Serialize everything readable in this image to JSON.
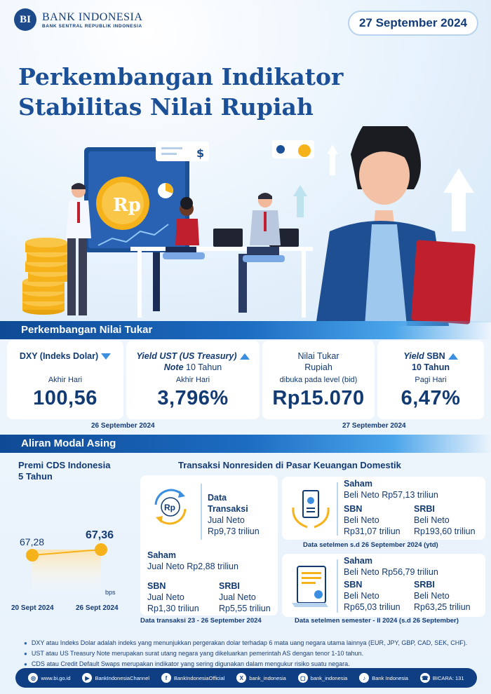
{
  "header": {
    "brand": "BANK INDONESIA",
    "brand_sub": "BANK SENTRAL REPUBLIK INDONESIA",
    "logo_letters": "BI",
    "date": "27 September 2024"
  },
  "title": {
    "line1": "Perkembangan Indikator",
    "line2": "Stabilitas Nilai Rupiah"
  },
  "illustration": {
    "coin_label": "Rp",
    "screen_icon": "$"
  },
  "exchange": {
    "heading": "Perkembangan Nilai Tukar",
    "cards": [
      {
        "label": "DXY (Indeks Dolar)",
        "sub": "Akhir Hari",
        "value": "100,56",
        "direction": "down"
      },
      {
        "label_italic": "Yield UST (US Treasury)",
        "label_italic2": "Note",
        "label_rest": " 10 Tahun",
        "sub": "Akhir Hari",
        "value": "3,796%",
        "direction": "up"
      },
      {
        "label": "Nilai Tukar",
        "label2": "Rupiah",
        "sub": "dibuka pada level (bid)",
        "value": "Rp15.070"
      },
      {
        "label_italic": "Yield",
        "label_rest": " SBN",
        "label2": "10 Tahun",
        "sub": "Pagi Hari",
        "value": "6,47%",
        "direction": "up"
      }
    ],
    "date_left": "26 September 2024",
    "date_right": "27 September 2024"
  },
  "capital": {
    "heading": "Aliran Modal Asing",
    "cds": {
      "title1": "Premi CDS Indonesia",
      "title2": "5 Tahun",
      "unit": "bps",
      "chart_data": {
        "type": "line",
        "categories": [
          "20 Sept 2024",
          "26 Sept 2024"
        ],
        "values": [
          67.28,
          67.36
        ],
        "labels": [
          "67,28",
          "67,36"
        ]
      }
    },
    "nonres_title": "Transaksi Nonresiden di Pasar Keuangan Domestik",
    "transaksi": {
      "title1": "Data",
      "title2": "Transaksi",
      "line1": "Jual Neto",
      "line2": "Rp9,73 triliun",
      "saham_label": "Saham",
      "saham_value": "Jual Neto Rp2,88 triliun",
      "sbn_label": "SBN",
      "sbn_line1": "Jual Neto",
      "sbn_line2": "Rp1,30 triliun",
      "srbi_label": "SRBI",
      "srbi_line1": "Jual Neto",
      "srbi_line2": "Rp5,55 triliun",
      "footnote": "Data transaksi 23 - 26 September 2024"
    },
    "ytd": {
      "saham_label": "Saham",
      "saham_value": "Beli Neto Rp57,13 triliun",
      "sbn_label": "SBN",
      "sbn_line1": "Beli Neto",
      "sbn_line2": "Rp31,07 triliun",
      "srbi_label": "SRBI",
      "srbi_line1": "Beli Neto",
      "srbi_line2": "Rp193,60 triliun",
      "footnote": "Data setelmen s.d 26 September 2024 (ytd)"
    },
    "semester": {
      "saham_label": "Saham",
      "saham_value": "Beli Neto Rp56,79 triliun",
      "sbn_label": "SBN",
      "sbn_line1": "Beli Neto",
      "sbn_line2": "Rp65,03 triliun",
      "srbi_label": "SRBI",
      "srbi_line1": "Beli Neto",
      "srbi_line2": "Rp63,25 triliun",
      "footnote": "Data setelmen semester - II 2024 (s.d 26 September)"
    }
  },
  "notes": [
    "DXY atau Indeks Dolar adalah indeks yang menunjukkan pergerakan dolar terhadap 6 mata uang negara utama lainnya (EUR, JPY, GBP, CAD, SEK, CHF).",
    "UST atau US Treasury Note merupakan surat utang negara yang dikeluarkan  pemerintah AS dengan tenor 1-10 tahun.",
    "CDS atau Credit Default Swaps merupakan indikator  yang sering digunakan dalam mengukur risiko suatu negara."
  ],
  "footer": [
    {
      "icon": "globe-icon",
      "glyph": "◎",
      "text": "www.bi.go.id"
    },
    {
      "icon": "youtube-icon",
      "glyph": "▶",
      "text": "BankIndonesiaChannel"
    },
    {
      "icon": "facebook-icon",
      "glyph": "f",
      "text": "BankIndonesiaOfficial"
    },
    {
      "icon": "x-icon",
      "glyph": "X",
      "text": "bank_indonesia"
    },
    {
      "icon": "instagram-icon",
      "glyph": "▢",
      "text": "bank_indonesia"
    },
    {
      "icon": "tiktok-icon",
      "glyph": "♪",
      "text": "Bank Indonesia"
    },
    {
      "icon": "bicara-icon",
      "glyph": "☎",
      "text": "BICARA: 131"
    }
  ],
  "colors": {
    "primary": "#123a73",
    "accent": "#1c6cc2",
    "chart_dot": "#f6b21b"
  }
}
